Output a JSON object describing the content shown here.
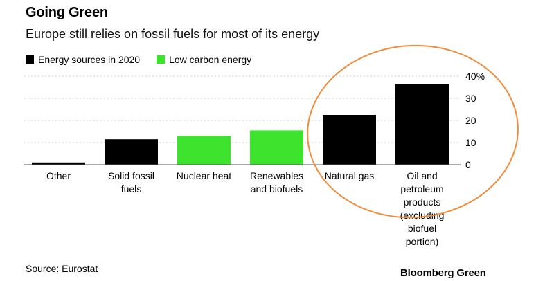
{
  "header": {
    "title": "Going Green",
    "subtitle": "Europe still relies on fossil fuels for most of its energy"
  },
  "footer": {
    "source": "Source: Eurostat",
    "brand": "Bloomberg Green"
  },
  "colors": {
    "fossil": "#000000",
    "low_carbon": "#3ee32e",
    "grid": "#cccccc",
    "highlight_circle": "#f08c3c"
  },
  "chart_data": {
    "type": "bar",
    "legend": [
      {
        "label": "Energy sources in 2020",
        "color": "#000000"
      },
      {
        "label": "Low carbon energy",
        "color": "#3ee32e"
      }
    ],
    "legend_position": "top-left",
    "categories": [
      [
        "Other"
      ],
      [
        "Solid fossil",
        "fuels"
      ],
      [
        "Nuclear heat"
      ],
      [
        "Renewables",
        "and biofuels"
      ],
      [
        "Natural gas"
      ],
      [
        "Oil and",
        "petroleum",
        "products",
        "(excluding",
        "biofuel",
        "portion)"
      ]
    ],
    "values": [
      1,
      11.5,
      13,
      15.5,
      22.5,
      36.5
    ],
    "bar_colors": [
      "#000000",
      "#000000",
      "#3ee32e",
      "#3ee32e",
      "#000000",
      "#000000"
    ],
    "ylim": [
      0,
      40
    ],
    "yticks": [
      0,
      10,
      20,
      30,
      40
    ],
    "ytick_labels": [
      "0",
      "10",
      "20",
      "30",
      "40%"
    ],
    "y_axis_side": "right",
    "grid": true,
    "annotation": "orange ellipse highlighting Natural gas and Oil and petroleum products"
  }
}
